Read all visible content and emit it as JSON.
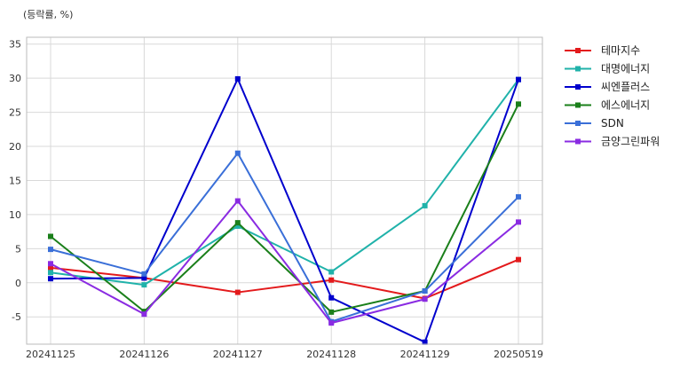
{
  "unit_label": "(등락률, %)",
  "chart_data": {
    "type": "line",
    "title": "",
    "xlabel": "",
    "ylabel": "",
    "unit_label": "(등락률, %)",
    "categories": [
      "20241125",
      "20241126",
      "20241127",
      "20241128",
      "20241129",
      "20250519"
    ],
    "ylim": [
      -9,
      36
    ],
    "yticks": [
      -5,
      0,
      5,
      10,
      15,
      20,
      25,
      30,
      35
    ],
    "grid": true,
    "legend_position": "right",
    "series": [
      {
        "name": "테마지수",
        "color": "#e31a1c",
        "values": [
          2.2,
          0.7,
          -1.4,
          0.4,
          -2.3,
          3.4
        ]
      },
      {
        "name": "대명에너지",
        "color": "#20b2aa",
        "values": [
          1.5,
          -0.3,
          8.3,
          1.6,
          11.3,
          29.8
        ]
      },
      {
        "name": "씨엔플러스",
        "color": "#0000cd",
        "values": [
          0.6,
          0.7,
          29.9,
          -2.2,
          -8.7,
          29.8
        ]
      },
      {
        "name": "에스에너지",
        "color": "#1a7f1a",
        "values": [
          6.8,
          -4.2,
          8.8,
          -4.3,
          -1.2,
          26.2
        ]
      },
      {
        "name": "SDN",
        "color": "#3a6fd8",
        "values": [
          4.9,
          1.3,
          19.0,
          -5.7,
          -1.2,
          12.6
        ]
      },
      {
        "name": "금양그린파워",
        "color": "#8a2be2",
        "values": [
          2.8,
          -4.6,
          12.0,
          -5.9,
          -2.4,
          8.9
        ]
      }
    ]
  }
}
